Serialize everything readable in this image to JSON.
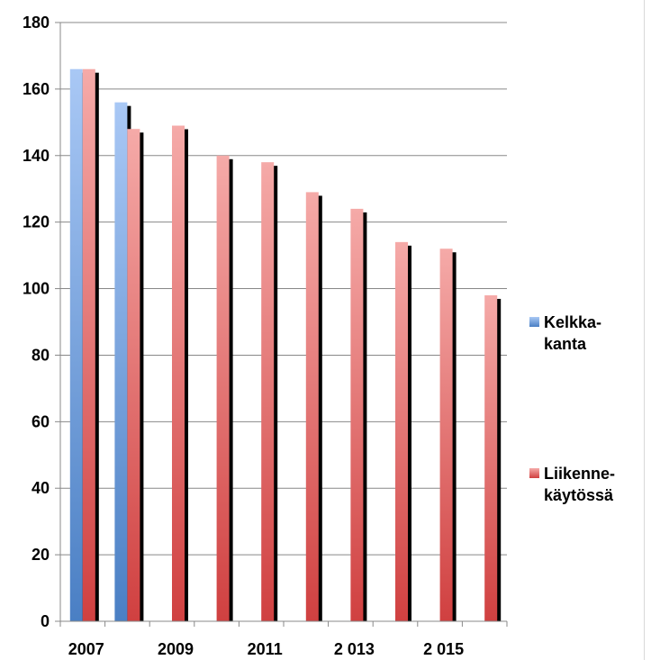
{
  "chart_data": {
    "type": "bar",
    "x_tick_labels": [
      "2007",
      "2009",
      "2011",
      "2 013",
      "2 015"
    ],
    "categories": [
      "2007",
      "2008",
      "2009",
      "2010",
      "2011",
      "2012",
      "2013",
      "2014",
      "2015",
      "2016"
    ],
    "series": [
      {
        "name": "Kelkka-kanta",
        "legend_lines": [
          "Kelkka-",
          "kanta"
        ],
        "color": "#4f81bd",
        "values": [
          166,
          156,
          null,
          null,
          null,
          null,
          null,
          null,
          null,
          null
        ]
      },
      {
        "name": "Liikenne-käytössä",
        "legend_lines": [
          "Liikenne-",
          "käytössä"
        ],
        "color": "#c0504d",
        "values": [
          166,
          148,
          149,
          140,
          138,
          129,
          124,
          114,
          112,
          98
        ]
      }
    ],
    "ylim": [
      0,
      180
    ],
    "y_ticks": [
      0,
      20,
      40,
      60,
      80,
      100,
      120,
      140,
      160,
      180
    ],
    "grid": true,
    "legend_position": "right"
  }
}
